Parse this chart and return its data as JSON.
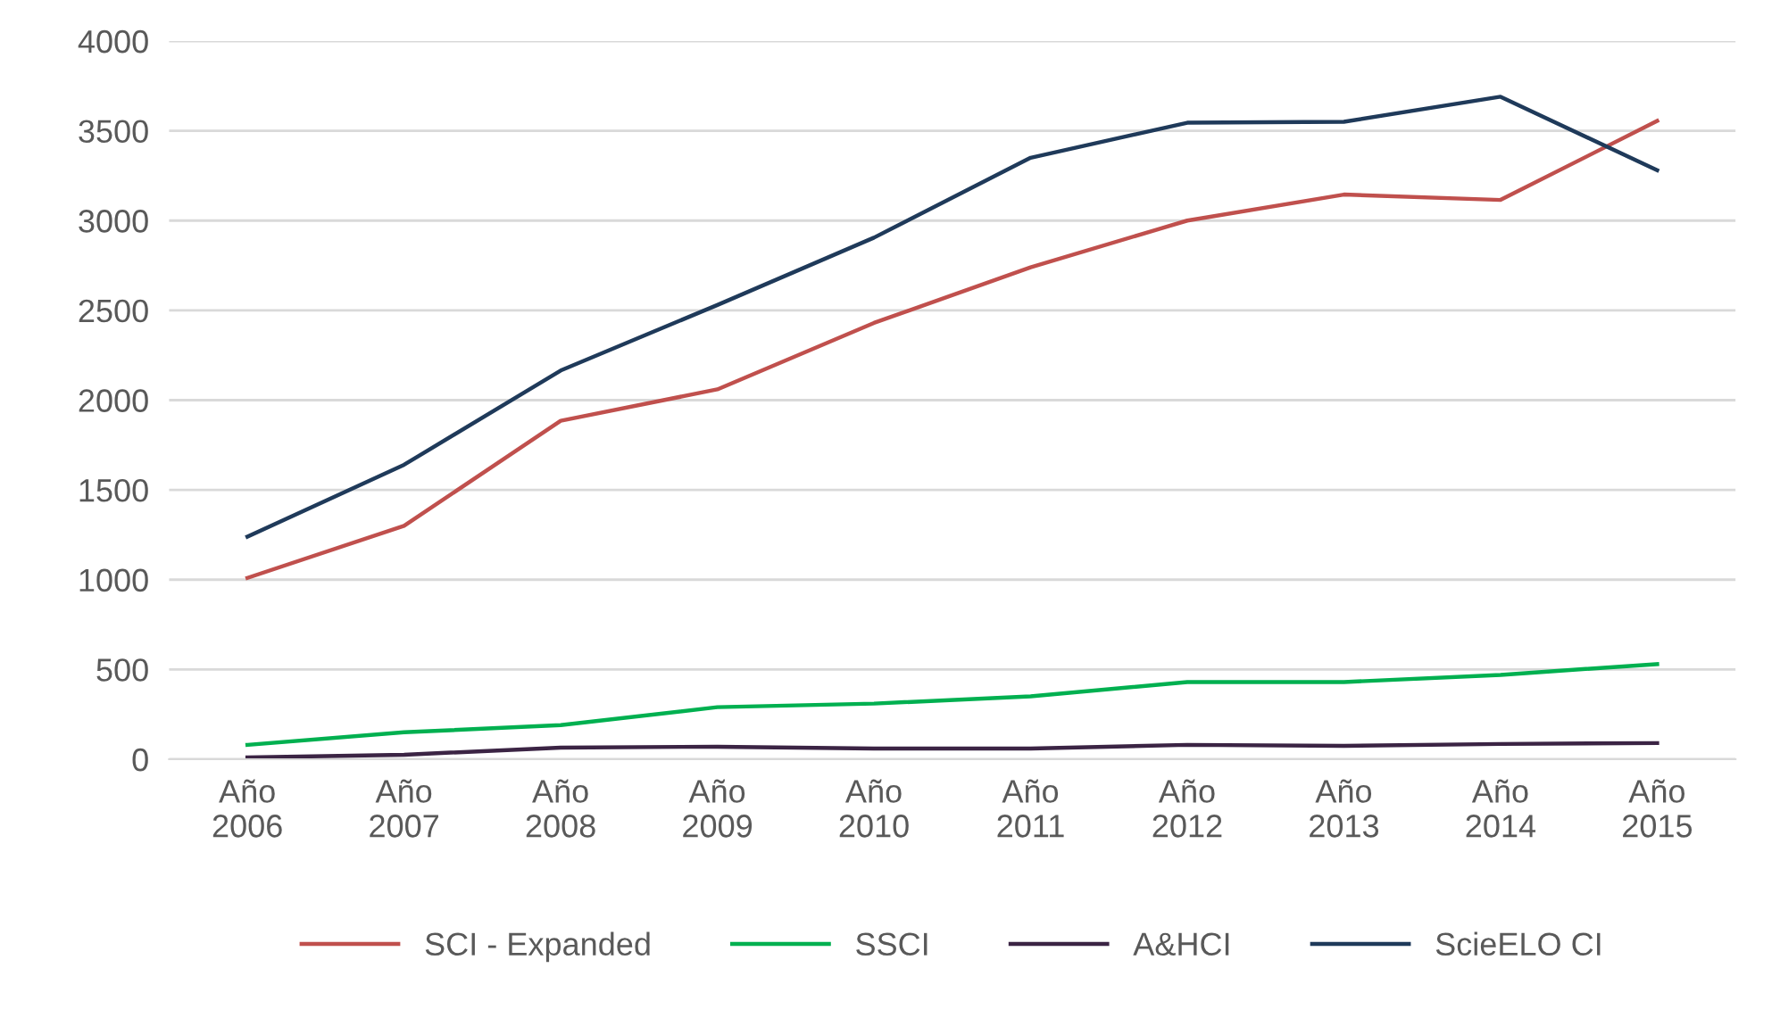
{
  "chart_data": {
    "type": "line",
    "categories": [
      "Año\n2006",
      "Año\n2007",
      "Año\n2008",
      "Año\n2009",
      "Año\n2010",
      "Año\n2011",
      "Año\n2012",
      "Año\n2013",
      "Año\n2014",
      "Año\n2015"
    ],
    "series": [
      {
        "name": "SCI - Expanded",
        "color": "#c0504d",
        "values": [
          1010,
          1300,
          1885,
          2060,
          2430,
          2740,
          3000,
          3145,
          3115,
          3555
        ]
      },
      {
        "name": "SSCI",
        "color": "#00b050",
        "values": [
          80,
          150,
          190,
          290,
          310,
          350,
          430,
          430,
          470,
          530
        ]
      },
      {
        "name": "A&HCI",
        "color": "#3b2444",
        "values": [
          10,
          25,
          65,
          70,
          60,
          60,
          80,
          75,
          85,
          90
        ]
      },
      {
        "name": "ScieELO CI",
        "color": "#1f3a5a",
        "values": [
          1240,
          1640,
          2165,
          2530,
          2905,
          3350,
          3545,
          3550,
          3690,
          3280
        ]
      }
    ],
    "ylim": [
      0,
      4000
    ],
    "yticks": [
      0,
      500,
      1000,
      1500,
      2000,
      2500,
      3000,
      3500,
      4000
    ],
    "grid": "y",
    "legend": "bottom",
    "marker": "none",
    "line_style": "solid"
  }
}
